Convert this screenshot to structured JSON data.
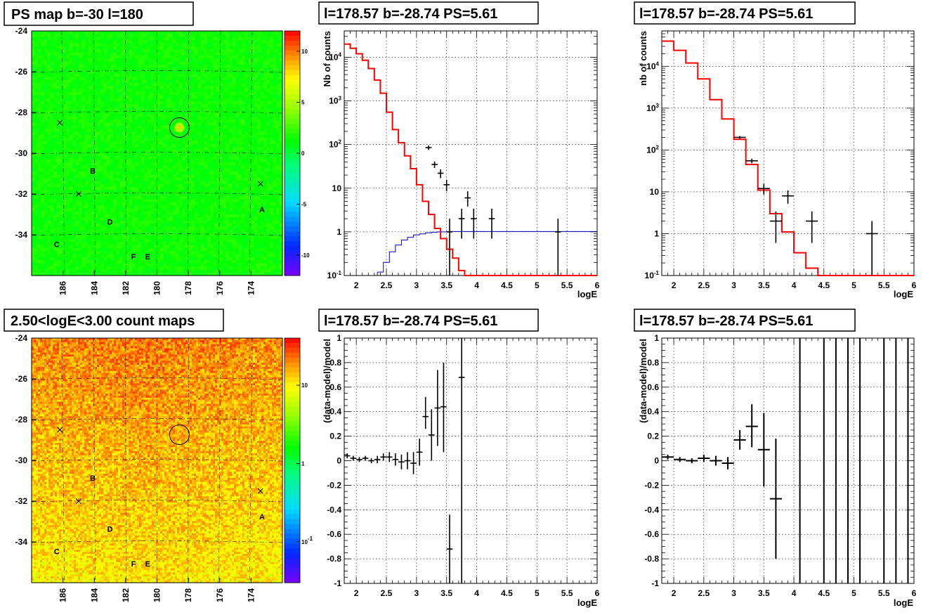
{
  "colors": {
    "model": "#ff0000",
    "blue_curve": "#0000cc",
    "data": "#000000",
    "frame": "#000000",
    "grid": "#000000"
  },
  "chart_data": [
    {
      "id": "ps-map",
      "type": "heatmap",
      "title": "PS map b=-30 l=180",
      "xlabel": "",
      "ylabel": "",
      "x_ticks": [
        "186",
        "184",
        "182",
        "180",
        "178",
        "176",
        "174"
      ],
      "y_ticks": [
        "-24",
        "-26",
        "-28",
        "-30",
        "-32",
        "-34"
      ],
      "xlim": [
        188,
        172
      ],
      "ylim": [
        -36,
        -24
      ],
      "colorbar_ticks": [
        "10",
        "5",
        "0",
        "-5",
        "-10"
      ],
      "colorbar_range": [
        -12,
        12
      ],
      "circle": {
        "l": 178.57,
        "b": -28.74
      },
      "crosses": [
        {
          "l": 186.2,
          "b": -28.5
        },
        {
          "l": 185.0,
          "b": -32.0
        },
        {
          "l": 173.4,
          "b": -31.5
        }
      ],
      "labels": [
        {
          "text": "B",
          "l": 184.1,
          "b": -31.0
        },
        {
          "text": "A",
          "l": 173.3,
          "b": -32.9
        },
        {
          "text": "D",
          "l": 183.0,
          "b": -33.5
        },
        {
          "text": "C",
          "l": 186.4,
          "b": -34.6
        },
        {
          "text": "F",
          "l": 181.5,
          "b": -35.2
        },
        {
          "text": "E",
          "l": 180.6,
          "b": -35.2
        }
      ]
    },
    {
      "id": "spec-fine",
      "type": "line",
      "title": "l=178.57 b=-28.74 PS=5.61",
      "xlabel": "logE",
      "ylabel": "Nb of counts",
      "xlim": [
        1.8,
        6
      ],
      "ylim": [
        0.1,
        40000
      ],
      "log_y": true,
      "x_ticks": [
        "2",
        "2.5",
        "3",
        "3.5",
        "4",
        "4.5",
        "5",
        "5.5",
        "6"
      ],
      "y_ticks": [
        "10^-1",
        "1",
        "10",
        "10^2",
        "10^3",
        "10^4"
      ],
      "grid": true,
      "model_edges": [
        1.8,
        1.9,
        2.0,
        2.1,
        2.2,
        2.3,
        2.4,
        2.5,
        2.6,
        2.7,
        2.8,
        2.9,
        3.0,
        3.1,
        3.2,
        3.3,
        3.4,
        3.5,
        3.6,
        3.7,
        3.8,
        3.9,
        4.0,
        4.1,
        4.2,
        4.3,
        6.0
      ],
      "model_values": [
        20000,
        16000,
        12000,
        8500,
        5500,
        3000,
        1500,
        550,
        220,
        110,
        55,
        28,
        12,
        5,
        2.5,
        1.2,
        0.7,
        0.4,
        0.25,
        0.13,
        0.1,
        0.1,
        0.1,
        0.1,
        0.1,
        0.1
      ],
      "blue_edges": [
        2.35,
        2.45,
        2.55,
        2.65,
        2.75,
        2.85,
        2.95,
        3.05,
        3.15,
        3.25,
        3.35,
        3.45,
        3.55,
        6.0
      ],
      "blue_values": [
        0.12,
        0.2,
        0.35,
        0.5,
        0.65,
        0.75,
        0.85,
        0.9,
        0.95,
        0.98,
        1.0,
        1.0,
        1.02
      ],
      "data_points": [
        {
          "x": 3.2,
          "y": 85,
          "lo": 75,
          "hi": 95,
          "dx": 0.05
        },
        {
          "x": 3.3,
          "y": 35,
          "lo": 29,
          "hi": 41,
          "dx": 0.05
        },
        {
          "x": 3.4,
          "y": 22,
          "lo": 17,
          "hi": 27,
          "dx": 0.05
        },
        {
          "x": 3.5,
          "y": 12,
          "lo": 8.5,
          "hi": 15.5,
          "dx": 0.05
        },
        {
          "x": 3.85,
          "y": 6,
          "lo": 3.8,
          "hi": 8.5,
          "dx": 0.05
        },
        {
          "x": 3.75,
          "y": 2,
          "lo": 0.7,
          "hi": 3.4,
          "dx": 0.05
        },
        {
          "x": 3.95,
          "y": 2,
          "lo": 0.7,
          "hi": 3.4,
          "dx": 0.05
        },
        {
          "x": 4.25,
          "y": 2,
          "lo": 0.7,
          "hi": 3.4,
          "dx": 0.05
        },
        {
          "x": 3.55,
          "y": 1,
          "lo": 0.1,
          "hi": 2,
          "dx": 0.05
        },
        {
          "x": 5.35,
          "y": 1,
          "lo": 0.1,
          "hi": 2,
          "dx": 0.05
        }
      ]
    },
    {
      "id": "spec-coarse",
      "type": "line",
      "title": "l=178.57 b=-28.74 PS=5.61",
      "xlabel": "logE",
      "ylabel": "nb of counts",
      "xlim": [
        1.8,
        6
      ],
      "ylim": [
        0.1,
        70000
      ],
      "log_y": true,
      "x_ticks": [
        "2",
        "2.5",
        "3",
        "3.5",
        "4",
        "4.5",
        "5",
        "5.5",
        "6"
      ],
      "y_ticks": [
        "10^-1",
        "1",
        "10",
        "10^2",
        "10^3",
        "10^4"
      ],
      "grid": true,
      "model_edges": [
        1.8,
        2.0,
        2.2,
        2.4,
        2.6,
        2.8,
        3.0,
        3.2,
        3.4,
        3.6,
        3.8,
        4.0,
        4.2,
        4.4,
        6.0
      ],
      "model_values": [
        40000,
        24000,
        12000,
        5000,
        1600,
        550,
        180,
        45,
        11,
        3,
        1.1,
        0.35,
        0.15,
        0.1
      ],
      "data_points": [
        {
          "x": 3.1,
          "y": 200,
          "lo": 185,
          "hi": 215,
          "dx": 0.1
        },
        {
          "x": 3.3,
          "y": 55,
          "lo": 48,
          "hi": 62,
          "dx": 0.1
        },
        {
          "x": 3.5,
          "y": 12,
          "lo": 8.5,
          "hi": 15.5,
          "dx": 0.1
        },
        {
          "x": 3.7,
          "y": 2,
          "lo": 0.6,
          "hi": 3.4,
          "dx": 0.1
        },
        {
          "x": 3.9,
          "y": 8,
          "lo": 5.2,
          "hi": 10.8,
          "dx": 0.1
        },
        {
          "x": 4.3,
          "y": 2,
          "lo": 0.6,
          "hi": 3.4,
          "dx": 0.1
        },
        {
          "x": 5.3,
          "y": 1,
          "lo": 0.1,
          "hi": 2,
          "dx": 0.1
        }
      ]
    },
    {
      "id": "count-map",
      "type": "heatmap",
      "title": "2.50<logE<3.00 count maps",
      "xlabel": "",
      "ylabel": "",
      "x_ticks": [
        "186",
        "184",
        "182",
        "180",
        "178",
        "176",
        "174"
      ],
      "y_ticks": [
        "-24",
        "-26",
        "-28",
        "-30",
        "-32",
        "-34"
      ],
      "xlim": [
        188,
        172
      ],
      "ylim": [
        -36,
        -24
      ],
      "colorbar_ticks": [
        "10",
        "1",
        "10^-1"
      ],
      "colorbar_range": [
        0.03,
        40
      ],
      "circle": {
        "l": 178.57,
        "b": -28.74
      },
      "crosses": [
        {
          "l": 186.2,
          "b": -28.5
        },
        {
          "l": 185.0,
          "b": -32.0
        },
        {
          "l": 173.4,
          "b": -31.5
        }
      ],
      "labels": [
        {
          "text": "B",
          "l": 184.1,
          "b": -31.0
        },
        {
          "text": "A",
          "l": 173.3,
          "b": -32.9
        },
        {
          "text": "D",
          "l": 183.0,
          "b": -33.5
        },
        {
          "text": "C",
          "l": 186.4,
          "b": -34.6
        },
        {
          "text": "F",
          "l": 181.5,
          "b": -35.2
        },
        {
          "text": "E",
          "l": 180.6,
          "b": -35.2
        }
      ]
    },
    {
      "id": "resid-fine",
      "type": "scatter",
      "title": "l=178.57 b=-28.74 PS=5.61",
      "xlabel": "logE",
      "ylabel": "(data-model)/model",
      "xlim": [
        1.8,
        6
      ],
      "ylim": [
        -1,
        1
      ],
      "x_ticks": [
        "2",
        "2.5",
        "3",
        "3.5",
        "4",
        "4.5",
        "5",
        "5.5",
        "6"
      ],
      "y_ticks": [
        "-1",
        "-0.8",
        "-0.6",
        "-0.4",
        "-0.2",
        "0",
        "0.2",
        "0.4",
        "0.6",
        "0.8",
        "1"
      ],
      "grid": true,
      "data_points": [
        {
          "x": 1.85,
          "y": 0.04,
          "lo": 0.02,
          "hi": 0.06,
          "dx": 0.05
        },
        {
          "x": 1.95,
          "y": 0.02,
          "lo": 0.0,
          "hi": 0.04,
          "dx": 0.05
        },
        {
          "x": 2.05,
          "y": 0.01,
          "lo": -0.01,
          "hi": 0.03,
          "dx": 0.05
        },
        {
          "x": 2.15,
          "y": 0.02,
          "lo": 0.0,
          "hi": 0.04,
          "dx": 0.05
        },
        {
          "x": 2.25,
          "y": 0.0,
          "lo": -0.02,
          "hi": 0.02,
          "dx": 0.05
        },
        {
          "x": 2.35,
          "y": 0.01,
          "lo": -0.02,
          "hi": 0.04,
          "dx": 0.05
        },
        {
          "x": 2.45,
          "y": 0.03,
          "lo": 0.0,
          "hi": 0.06,
          "dx": 0.05
        },
        {
          "x": 2.55,
          "y": 0.03,
          "lo": -0.01,
          "hi": 0.07,
          "dx": 0.05
        },
        {
          "x": 2.65,
          "y": 0.01,
          "lo": -0.04,
          "hi": 0.06,
          "dx": 0.05
        },
        {
          "x": 2.75,
          "y": -0.01,
          "lo": -0.07,
          "hi": 0.05,
          "dx": 0.05
        },
        {
          "x": 2.85,
          "y": 0.0,
          "lo": -0.07,
          "hi": 0.07,
          "dx": 0.05
        },
        {
          "x": 2.95,
          "y": -0.02,
          "lo": -0.11,
          "hi": 0.07,
          "dx": 0.05
        },
        {
          "x": 3.05,
          "y": 0.07,
          "lo": -0.04,
          "hi": 0.18,
          "dx": 0.05
        },
        {
          "x": 3.15,
          "y": 0.36,
          "lo": 0.26,
          "hi": 0.52,
          "dx": 0.05
        },
        {
          "x": 3.25,
          "y": 0.21,
          "lo": 0.0,
          "hi": 0.42,
          "dx": 0.05
        },
        {
          "x": 3.35,
          "y": 0.43,
          "lo": 0.12,
          "hi": 0.74,
          "dx": 0.05
        },
        {
          "x": 3.45,
          "y": 0.44,
          "lo": 0.07,
          "hi": 0.8,
          "dx": 0.05
        },
        {
          "x": 3.55,
          "y": -0.72,
          "lo": -1.0,
          "hi": -0.44,
          "dx": 0.05
        },
        {
          "x": 3.75,
          "y": 0.68,
          "lo": -1.0,
          "hi": 1.0,
          "dx": 0.05
        }
      ]
    },
    {
      "id": "resid-coarse",
      "type": "scatter",
      "title": "l=178.57 b=-28.74 PS=5.61",
      "xlabel": "logE",
      "ylabel": "(data-model)/model",
      "xlim": [
        1.8,
        6
      ],
      "ylim": [
        -1,
        1
      ],
      "x_ticks": [
        "2",
        "2.5",
        "3",
        "3.5",
        "4",
        "4.5",
        "5",
        "5.5",
        "6"
      ],
      "y_ticks": [
        "-1",
        "-0.8",
        "-0.6",
        "-0.4",
        "-0.2",
        "0",
        "0.2",
        "0.4",
        "0.6",
        "0.8",
        "1"
      ],
      "grid": true,
      "data_points": [
        {
          "x": 1.9,
          "y": 0.03,
          "lo": 0.01,
          "hi": 0.05,
          "dx": 0.1
        },
        {
          "x": 2.1,
          "y": 0.01,
          "lo": -0.01,
          "hi": 0.03,
          "dx": 0.1
        },
        {
          "x": 2.3,
          "y": 0.0,
          "lo": -0.02,
          "hi": 0.02,
          "dx": 0.1
        },
        {
          "x": 2.5,
          "y": 0.02,
          "lo": -0.01,
          "hi": 0.05,
          "dx": 0.1
        },
        {
          "x": 2.7,
          "y": 0.0,
          "lo": -0.04,
          "hi": 0.04,
          "dx": 0.1
        },
        {
          "x": 2.9,
          "y": -0.02,
          "lo": -0.07,
          "hi": 0.03,
          "dx": 0.1
        },
        {
          "x": 3.1,
          "y": 0.17,
          "lo": 0.09,
          "hi": 0.25,
          "dx": 0.1
        },
        {
          "x": 3.3,
          "y": 0.28,
          "lo": 0.11,
          "hi": 0.46,
          "dx": 0.1
        },
        {
          "x": 3.5,
          "y": 0.09,
          "lo": -0.21,
          "hi": 0.39,
          "dx": 0.1
        },
        {
          "x": 3.7,
          "y": -0.31,
          "lo": -0.8,
          "hi": 0.18,
          "dx": 0.1
        },
        {
          "x": 4.1,
          "y": 1.5,
          "lo": -1.0,
          "hi": 1.0,
          "dx": 0.1
        },
        {
          "x": 4.5,
          "y": 1.5,
          "lo": -1.0,
          "hi": 1.0,
          "dx": 0.1
        },
        {
          "x": 4.7,
          "y": 1.5,
          "lo": -1.0,
          "hi": 1.0,
          "dx": 0.1
        },
        {
          "x": 4.9,
          "y": 1.5,
          "lo": -1.0,
          "hi": 1.0,
          "dx": 0.1
        },
        {
          "x": 5.1,
          "y": 1.5,
          "lo": -1.0,
          "hi": 1.0,
          "dx": 0.1
        },
        {
          "x": 5.5,
          "y": 1.5,
          "lo": -1.0,
          "hi": 1.0,
          "dx": 0.1
        },
        {
          "x": 5.7,
          "y": 1.5,
          "lo": -1.0,
          "hi": 1.0,
          "dx": 0.1
        },
        {
          "x": 5.9,
          "y": 1.5,
          "lo": -1.0,
          "hi": 1.0,
          "dx": 0.1
        }
      ]
    }
  ]
}
